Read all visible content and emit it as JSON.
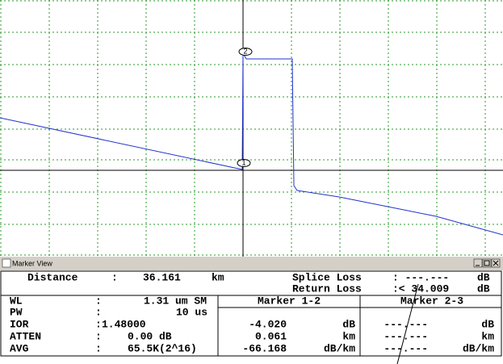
{
  "plot": {
    "marker_labels": [
      "1",
      "2"
    ]
  },
  "window": {
    "title": "Marker View"
  },
  "summary": {
    "distance": {
      "label": "Distance",
      "sep": ":",
      "value": "36.161",
      "unit": "km"
    },
    "splice_loss": {
      "label": "Splice Loss",
      "value": ": ---.---",
      "unit": "dB"
    },
    "return_loss": {
      "label": "Return Loss",
      "value": ":< 34.009",
      "unit": "dB"
    }
  },
  "settings": [
    {
      "label": "WL",
      "sep": ":",
      "value": "1.31 um SM"
    },
    {
      "label": "PW",
      "sep": ":",
      "value": "10 us"
    },
    {
      "label": "IOR",
      "sep": ":",
      "value": "1.48000"
    },
    {
      "label": "ATTEN",
      "sep": ":",
      "value": "0.00 dB"
    },
    {
      "label": "AVG",
      "sep": ":",
      "value": "65.5K(2^16)"
    }
  ],
  "markers": [
    {
      "header": "Marker 1-2",
      "rows": [
        {
          "value": "-4.020",
          "unit": "dB"
        },
        {
          "value": "0.061",
          "unit": "km"
        },
        {
          "value": "-66.168",
          "unit": "dB/km"
        }
      ]
    },
    {
      "header": "Marker 2-3",
      "rows": [
        {
          "value": "---.---",
          "unit": "dB"
        },
        {
          "value": "---.---",
          "unit": "km"
        },
        {
          "value": "---.---",
          "unit": "dB/km"
        }
      ]
    }
  ]
}
